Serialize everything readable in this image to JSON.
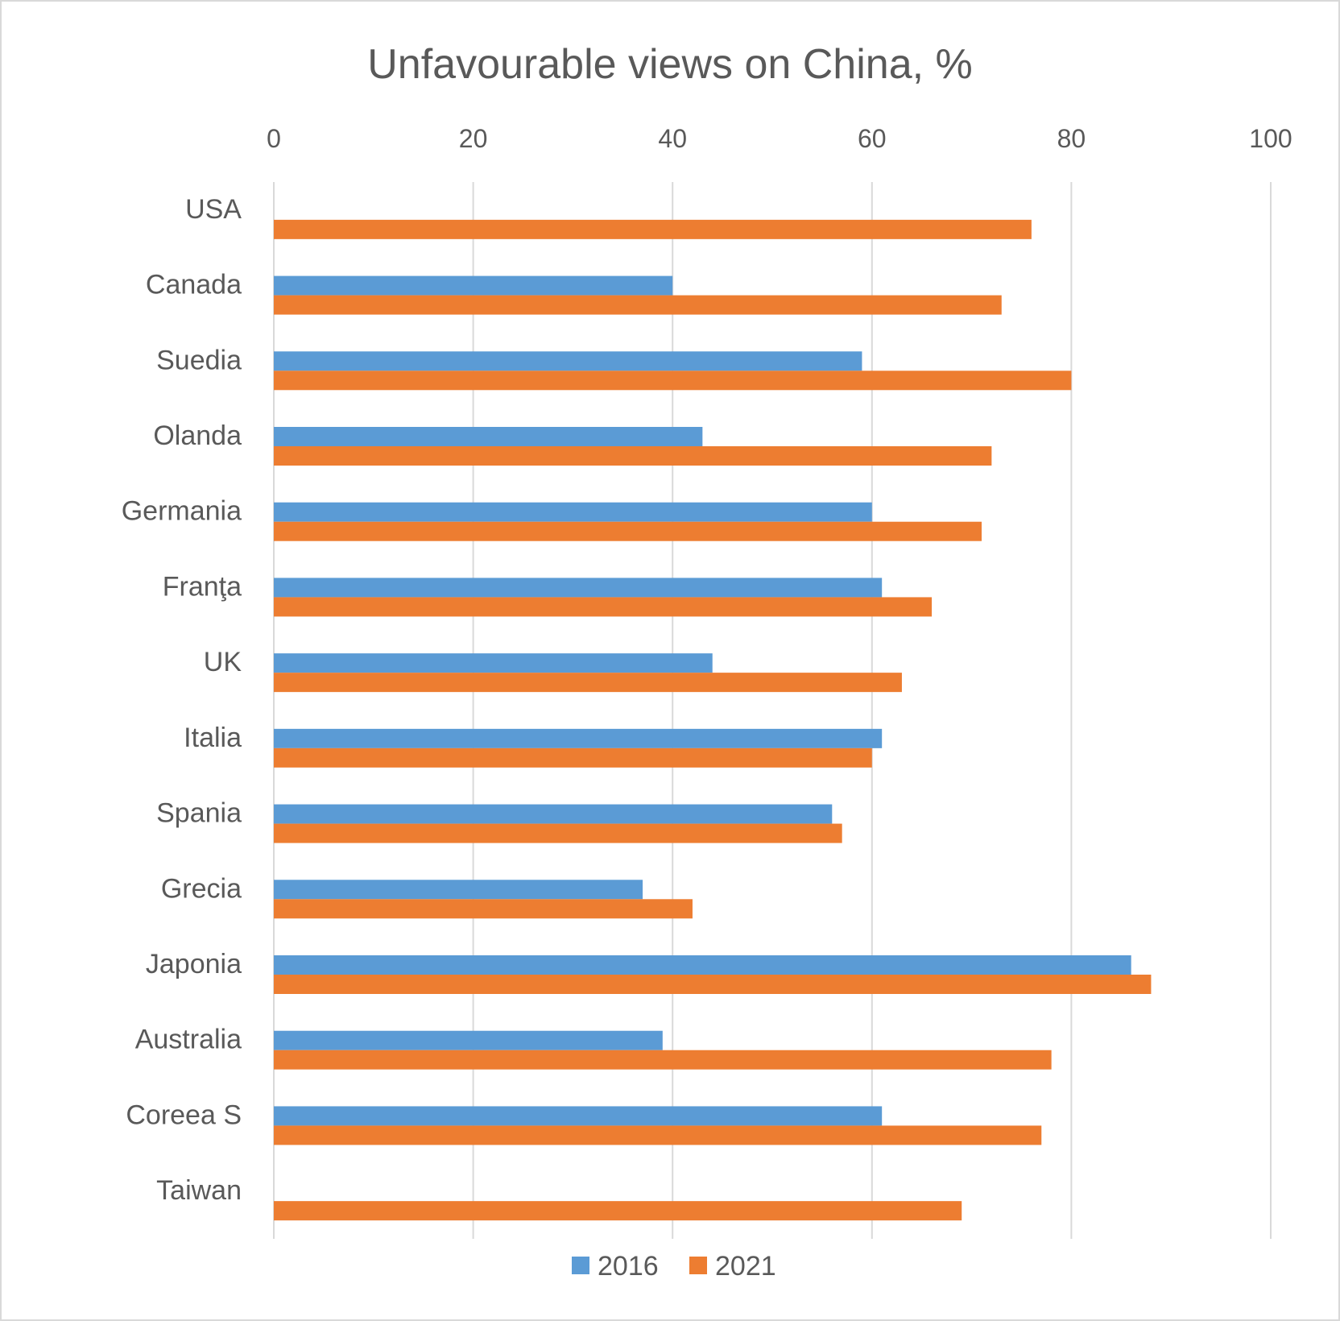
{
  "chart_data": {
    "type": "bar",
    "orientation": "horizontal",
    "title": "Unfavourable views on China, %",
    "xlabel": "",
    "ylabel": "",
    "xlim": [
      0,
      100
    ],
    "x_ticks": [
      "0",
      "20",
      "40",
      "60",
      "80",
      "100"
    ],
    "x_axis_position": "top",
    "grid": true,
    "legend_position": "bottom",
    "categories": [
      "USA",
      "Canada",
      "Suedia",
      "Olanda",
      "Germania",
      "Franţa",
      "UK",
      "Italia",
      "Spania",
      "Grecia",
      "Japonia",
      "Australia",
      "Coreea S",
      "Taiwan"
    ],
    "series": [
      {
        "name": "2016",
        "color": "#5b9bd5",
        "values": [
          null,
          40,
          59,
          43,
          60,
          61,
          44,
          61,
          56,
          37,
          86,
          39,
          61,
          null
        ]
      },
      {
        "name": "2021",
        "color": "#ed7d31",
        "values": [
          76,
          73,
          80,
          72,
          71,
          66,
          63,
          60,
          57,
          42,
          88,
          78,
          77,
          69
        ]
      }
    ]
  }
}
